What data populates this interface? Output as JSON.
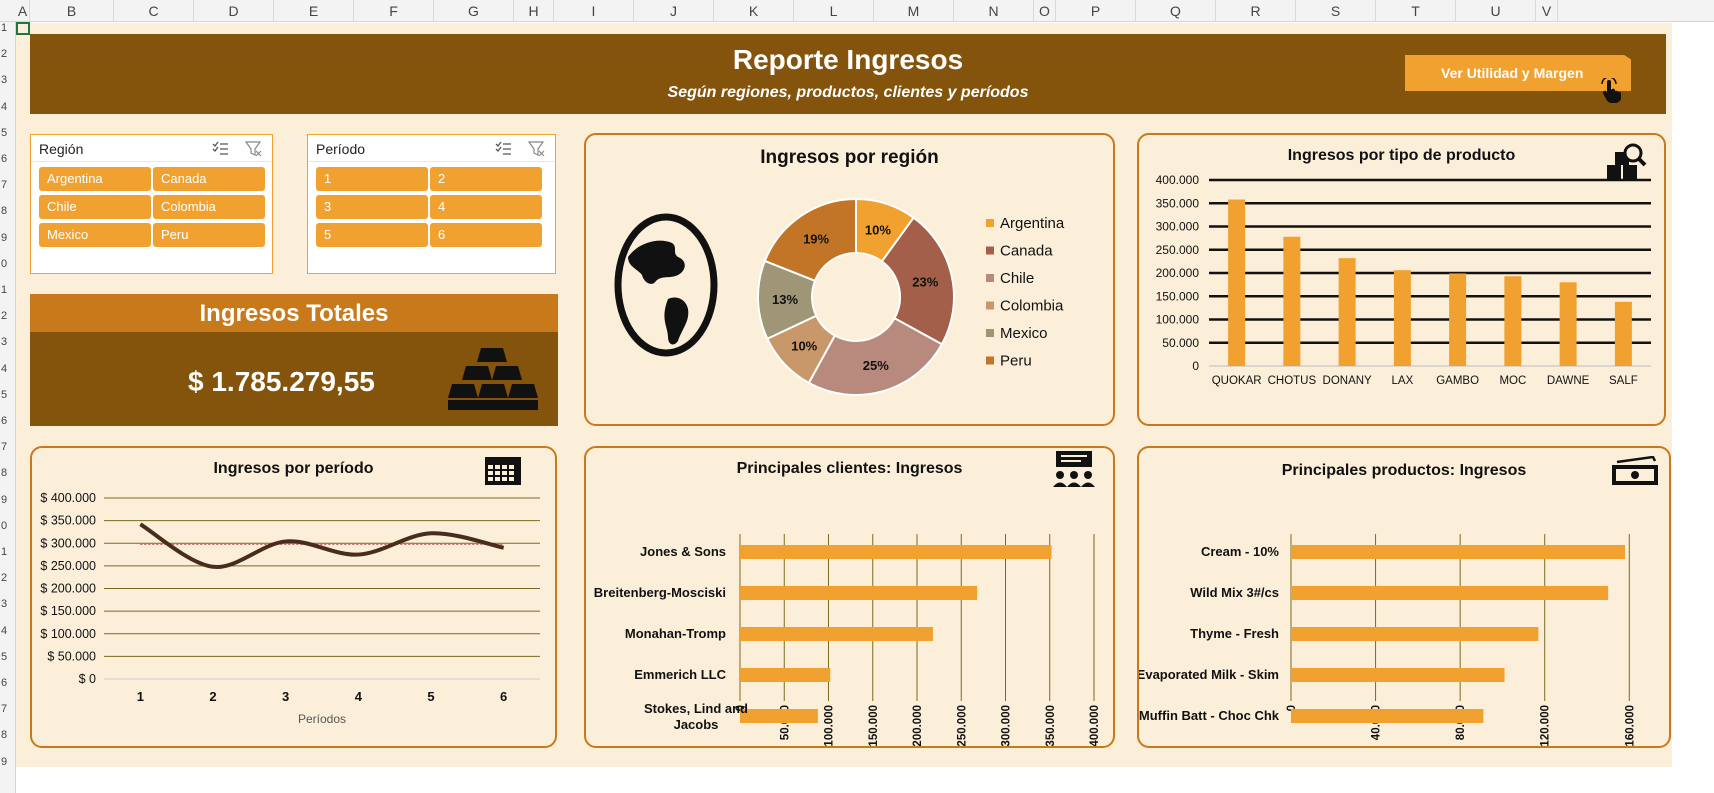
{
  "sheet": {
    "columns": [
      "A",
      "B",
      "C",
      "D",
      "E",
      "F",
      "G",
      "H",
      "I",
      "J",
      "K",
      "L",
      "M",
      "N",
      "O",
      "P",
      "Q",
      "R",
      "S",
      "T",
      "U",
      "V"
    ],
    "rows": [
      "1",
      "2",
      "3",
      "4",
      "5",
      "6",
      "7",
      "8",
      "9",
      "0",
      "1",
      "2",
      "3",
      "4",
      "5",
      "6",
      "7",
      "8",
      "9",
      "0",
      "1",
      "2",
      "3",
      "4",
      "5",
      "6",
      "7",
      "8",
      "9"
    ]
  },
  "header": {
    "title": "Reporte Ingresos",
    "subtitle": "Según regiones, productos, clientes y períodos",
    "button_label": "Ver Utilidad y Margen"
  },
  "slicers": {
    "region": {
      "title": "Región",
      "items": [
        "Argentina",
        "Canada",
        "Chile",
        "Colombia",
        "Mexico",
        "Peru"
      ]
    },
    "period": {
      "title": "Período",
      "items": [
        "1",
        "2",
        "3",
        "4",
        "5",
        "6"
      ]
    }
  },
  "total": {
    "title": "Ingresos Totales",
    "value": "$ 1.785.279,55"
  },
  "colors": {
    "orange": "#f0a130",
    "brown": "#84530c",
    "dark_brown": "#4a2c1c",
    "panel_bg": "#fcefd9",
    "border": "#c8791a"
  },
  "chart_data": [
    {
      "type": "pie",
      "title": "Ingresos por región",
      "categories": [
        "Argentina",
        "Canada",
        "Chile",
        "Colombia",
        "Mexico",
        "Peru"
      ],
      "values": [
        10,
        23,
        25,
        10,
        13,
        19
      ],
      "labels": [
        "10%",
        "23%",
        "25%",
        "10%",
        "13%",
        "19%"
      ],
      "colors": [
        "#f0a130",
        "#a45f4a",
        "#b88a7e",
        "#c8976a",
        "#9e9677",
        "#c27527"
      ],
      "legend": "right"
    },
    {
      "type": "bar",
      "title": "Ingresos por tipo de producto",
      "categories": [
        "QUOKAR",
        "CHOTUS",
        "DONANY",
        "LAX",
        "GAMBO",
        "MOC",
        "DAWNE",
        "SALF"
      ],
      "values": [
        358000,
        278000,
        232000,
        206000,
        199000,
        193000,
        180000,
        138000
      ],
      "ticks": [
        "400.000",
        "350.000",
        "300.000",
        "250.000",
        "200.000",
        "150.000",
        "100.000",
        "50.000",
        "0"
      ],
      "ylim": [
        0,
        400000
      ]
    },
    {
      "type": "line",
      "title": "Ingresos por período",
      "xlabel": "Períodos",
      "x": [
        1,
        2,
        3,
        4,
        5,
        6
      ],
      "values": [
        342000,
        248000,
        304000,
        275000,
        322000,
        290000
      ],
      "ticks": [
        "$ 400.000",
        "$ 350.000",
        "$ 300.000",
        "$ 250.000",
        "$ 200.000",
        "$ 150.000",
        "$ 100.000",
        "$ 50.000",
        "$ 0"
      ],
      "ylim": [
        0,
        400000
      ],
      "average": 297546
    },
    {
      "type": "bar",
      "orientation": "horizontal",
      "title": "Principales clientes: Ingresos",
      "categories": [
        "Jones & Sons",
        "Breitenberg-Mosciski",
        "Monahan-Tromp",
        "Emmerich LLC",
        "Stokes, Lind and Jacobs"
      ],
      "values": [
        352000,
        268000,
        218000,
        102000,
        88000
      ],
      "ticks": [
        "0",
        "50.000",
        "100.000",
        "150.000",
        "200.000",
        "250.000",
        "300.000",
        "350.000",
        "400.000"
      ],
      "xlim": [
        0,
        400000
      ]
    },
    {
      "type": "bar",
      "orientation": "horizontal",
      "title": "Principales productos: Ingresos",
      "categories": [
        "Cream - 10%",
        "Wild Mix 3#/cs",
        "Thyme - Fresh",
        "Evaporated Milk - Skim",
        "Muffin Batt - Choc Chk"
      ],
      "values": [
        158000,
        150000,
        117000,
        101000,
        91000
      ],
      "ticks": [
        "0",
        "40.000",
        "80.000",
        "120.000",
        "160.000"
      ],
      "xlim": [
        0,
        175000
      ]
    }
  ]
}
